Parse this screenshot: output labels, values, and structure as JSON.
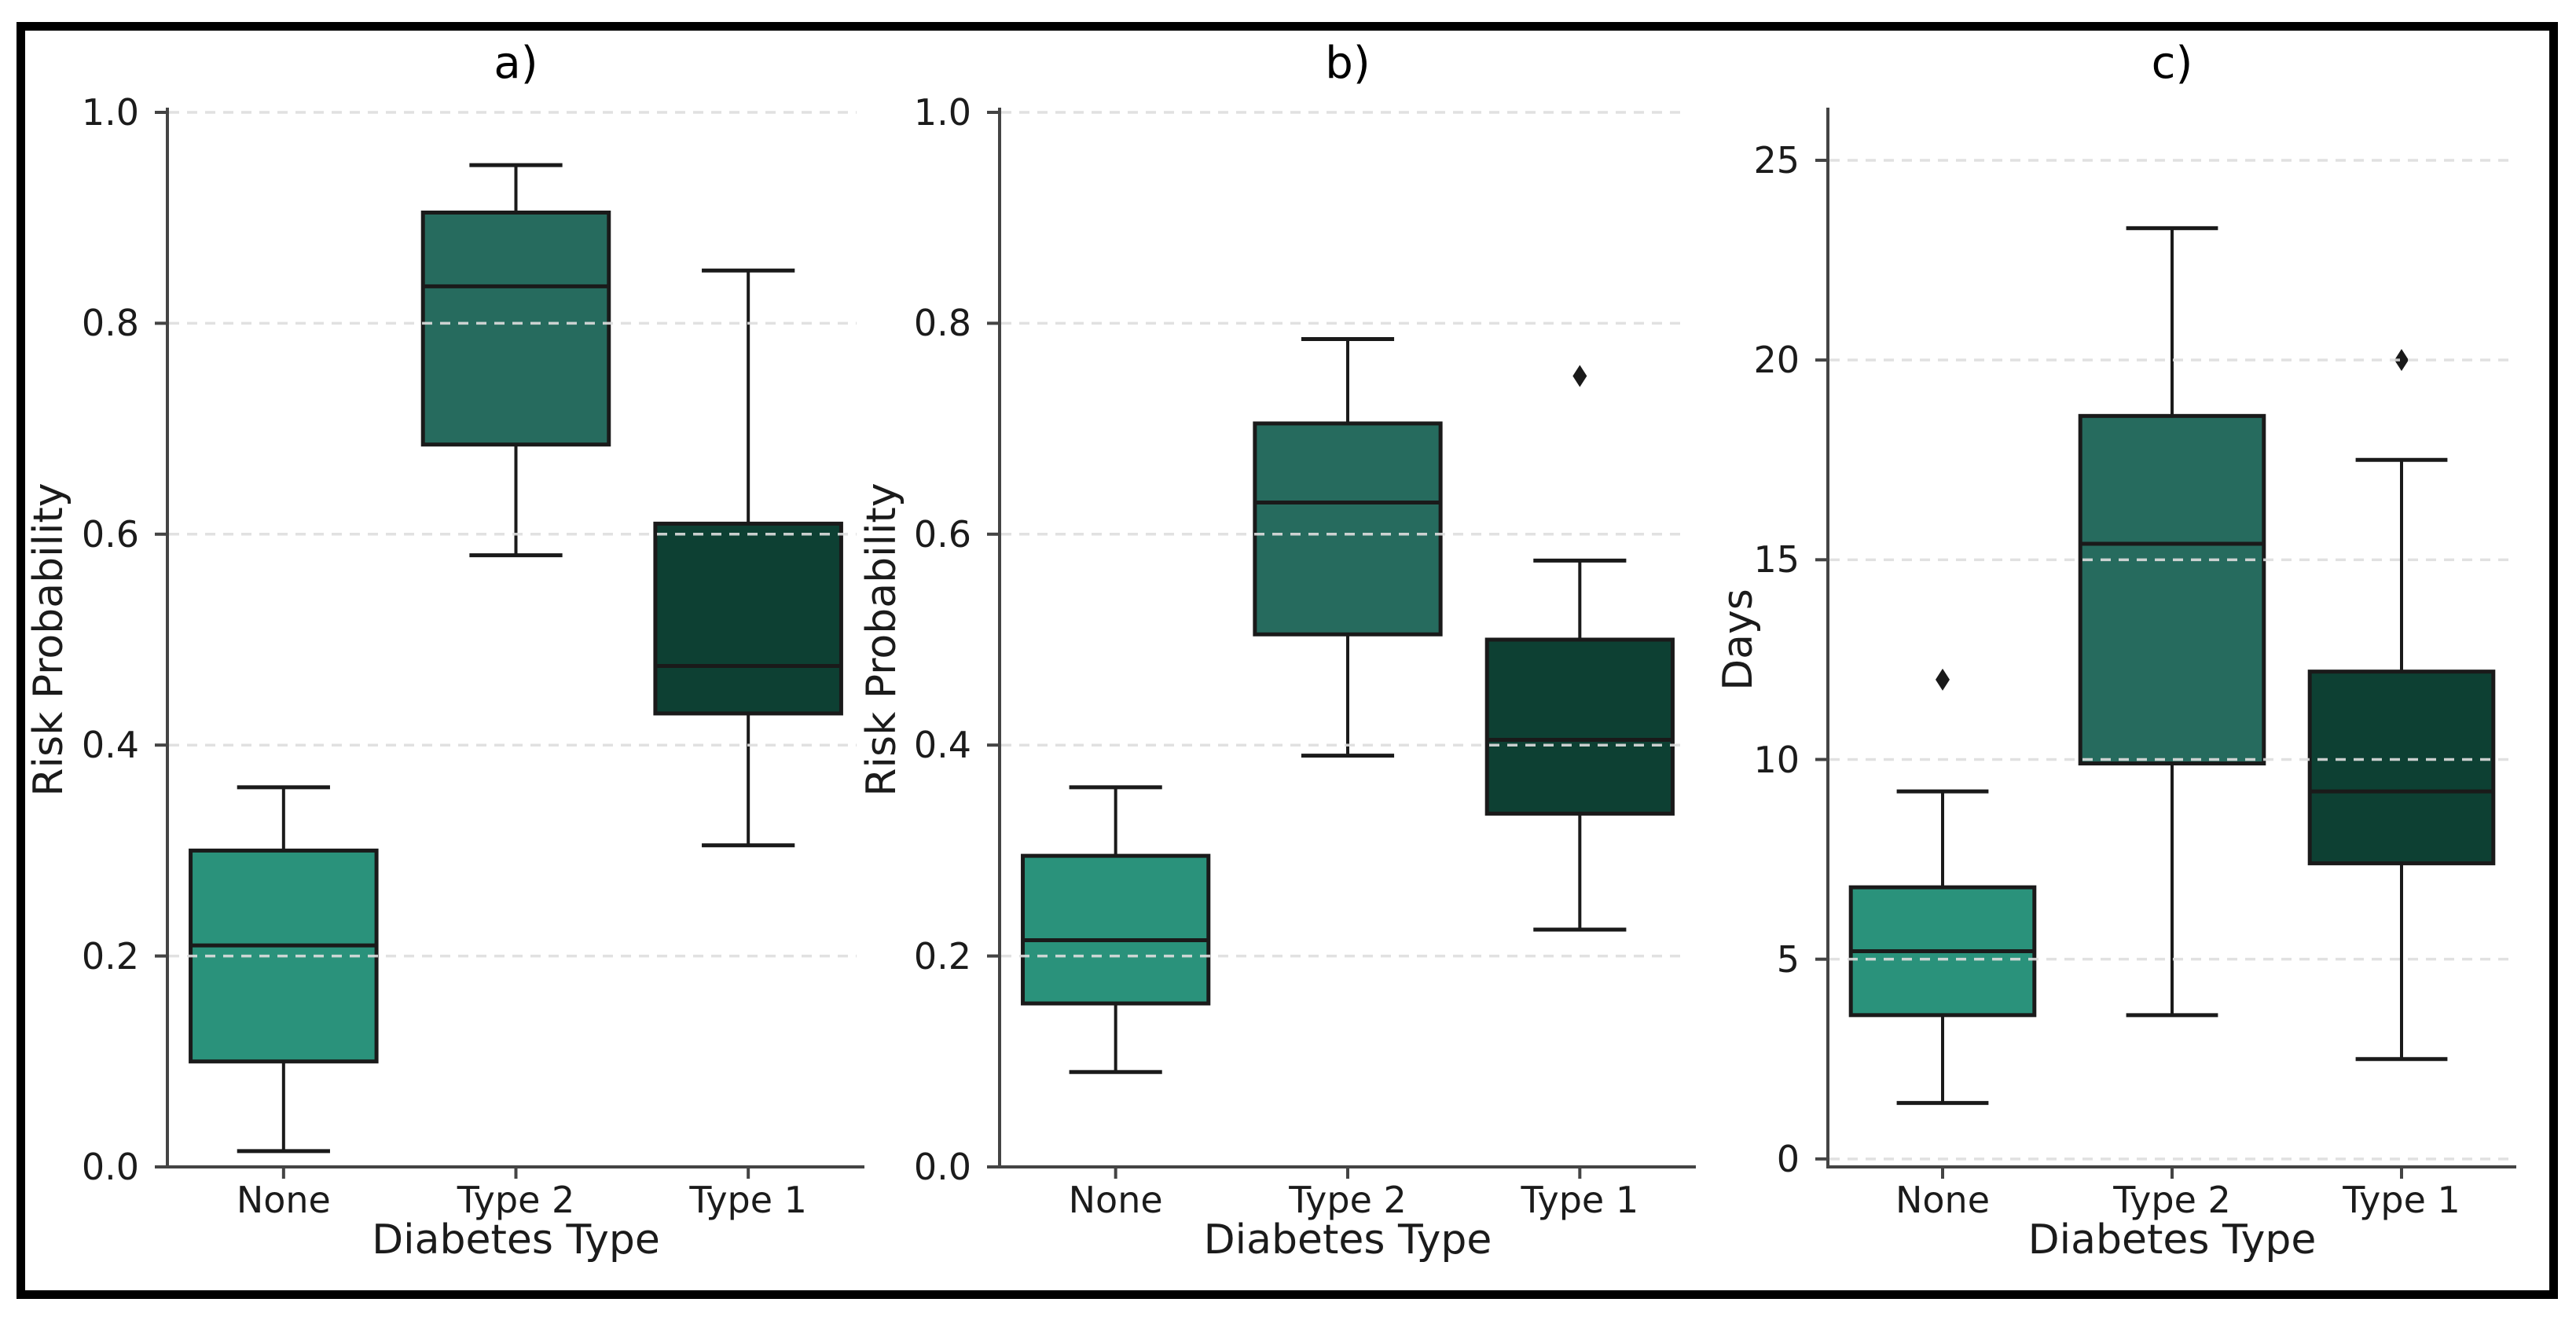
{
  "figure": {
    "background": "#ffffff",
    "border_color": "#000000",
    "text_color": "#1b1b1b",
    "spine_color": "#444444",
    "gridline_color": "#dedede",
    "box_edge_color": "#1a1a1a",
    "outlier_color": "#1a1a1a"
  },
  "chart_data": [
    {
      "type": "box",
      "title": "a)",
      "xlabel": "Diabetes Type",
      "ylabel": "Risk Probability",
      "categories": [
        "None",
        "Type 2",
        "Type 1"
      ],
      "ylim": [
        0.0,
        1.0
      ],
      "yticks": [
        0.0,
        0.2,
        0.4,
        0.6,
        0.8,
        1.0
      ],
      "ytick_labels": [
        "0.0",
        "0.2",
        "0.4",
        "0.6",
        "0.8",
        "1.0"
      ],
      "grid": "horizontal-dashed",
      "legend": "none",
      "boxes": [
        {
          "category": "None",
          "color": "#2a927b",
          "whisker_low": 0.015,
          "q1": 0.1,
          "median": 0.21,
          "q3": 0.3,
          "whisker_high": 0.36,
          "outliers": []
        },
        {
          "category": "Type 2",
          "color": "#266b5e",
          "whisker_low": 0.58,
          "q1": 0.685,
          "median": 0.835,
          "q3": 0.905,
          "whisker_high": 0.95,
          "outliers": []
        },
        {
          "category": "Type 1",
          "color": "#0d4033",
          "whisker_low": 0.305,
          "q1": 0.43,
          "median": 0.475,
          "q3": 0.61,
          "whisker_high": 0.85,
          "outliers": []
        }
      ]
    },
    {
      "type": "box",
      "title": "b)",
      "xlabel": "Diabetes Type",
      "ylabel": "Risk Probability",
      "categories": [
        "None",
        "Type 2",
        "Type 1"
      ],
      "ylim": [
        0.0,
        1.0
      ],
      "yticks": [
        0.0,
        0.2,
        0.4,
        0.6,
        0.8,
        1.0
      ],
      "ytick_labels": [
        "0.0",
        "0.2",
        "0.4",
        "0.6",
        "0.8",
        "1.0"
      ],
      "grid": "horizontal-dashed",
      "legend": "none",
      "boxes": [
        {
          "category": "None",
          "color": "#2a927b",
          "whisker_low": 0.09,
          "q1": 0.155,
          "median": 0.215,
          "q3": 0.295,
          "whisker_high": 0.36,
          "outliers": []
        },
        {
          "category": "Type 2",
          "color": "#266b5e",
          "whisker_low": 0.39,
          "q1": 0.505,
          "median": 0.63,
          "q3": 0.705,
          "whisker_high": 0.785,
          "outliers": []
        },
        {
          "category": "Type 1",
          "color": "#0d4033",
          "whisker_low": 0.225,
          "q1": 0.335,
          "median": 0.405,
          "q3": 0.5,
          "whisker_high": 0.575,
          "outliers": [
            0.75
          ]
        }
      ]
    },
    {
      "type": "box",
      "title": "c)",
      "xlabel": "Diabetes Type",
      "ylabel": "Days",
      "categories": [
        "None",
        "Type 2",
        "Type 1"
      ],
      "ylim": [
        -0.2,
        26.2
      ],
      "yticks": [
        0,
        5,
        10,
        15,
        20,
        25
      ],
      "ytick_labels": [
        "0",
        "5",
        "10",
        "15",
        "20",
        "25"
      ],
      "grid": "horizontal-dashed",
      "legend": "none",
      "boxes": [
        {
          "category": "None",
          "color": "#2a927b",
          "whisker_low": 1.4,
          "q1": 3.6,
          "median": 5.2,
          "q3": 6.8,
          "whisker_high": 9.2,
          "outliers": [
            12
          ]
        },
        {
          "category": "Type 2",
          "color": "#266b5e",
          "whisker_low": 3.6,
          "q1": 9.9,
          "median": 15.4,
          "q3": 18.6,
          "whisker_high": 23.3,
          "outliers": []
        },
        {
          "category": "Type 1",
          "color": "#0d4033",
          "whisker_low": 2.5,
          "q1": 7.4,
          "median": 9.2,
          "q3": 12.2,
          "whisker_high": 17.5,
          "outliers": [
            20
          ]
        }
      ]
    }
  ]
}
